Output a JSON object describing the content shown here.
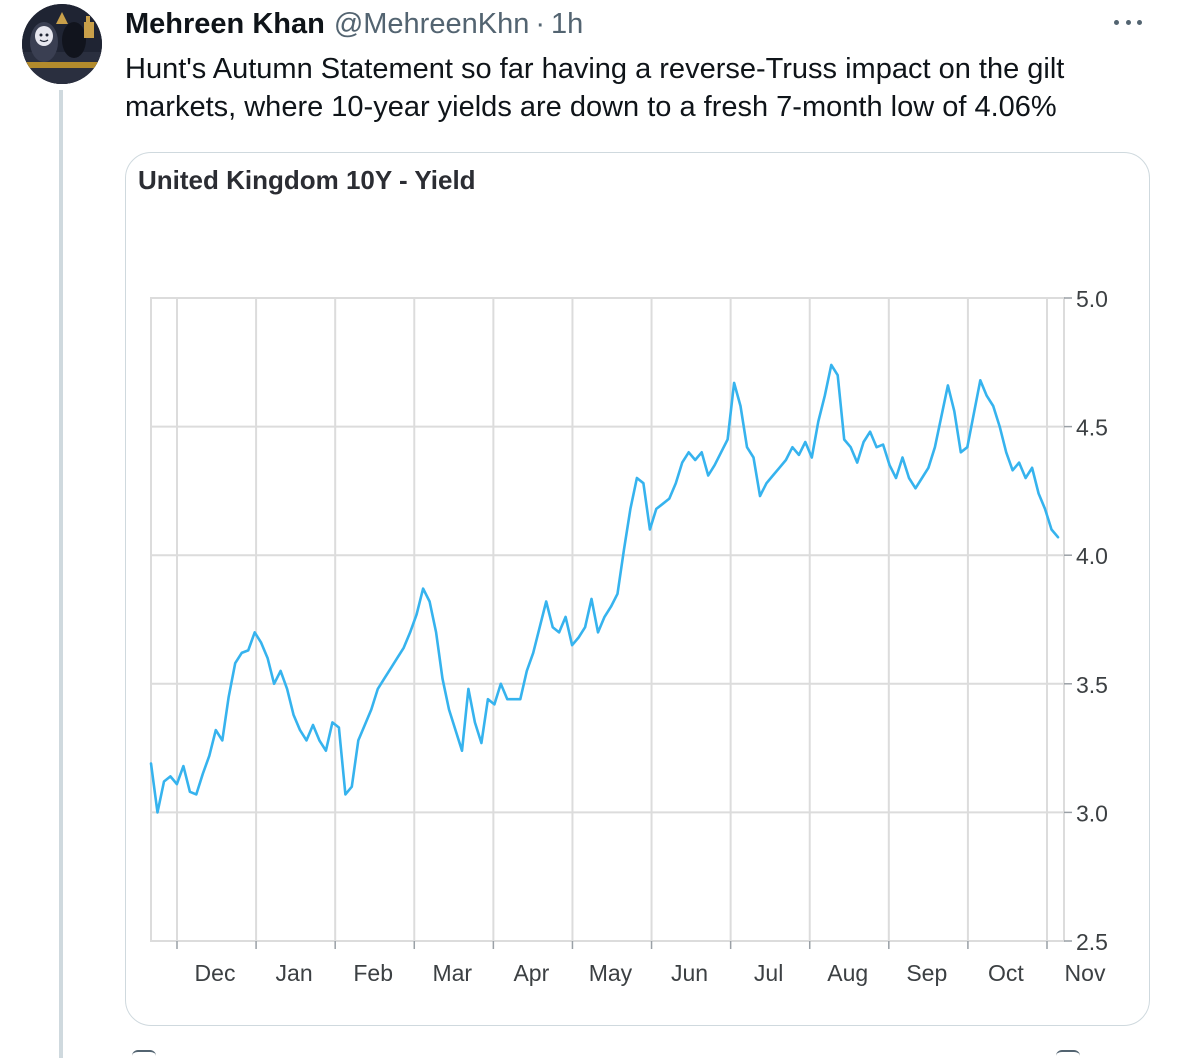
{
  "tweet": {
    "author_name": "Mehreen Khan",
    "handle": "@MehreenKhn",
    "separator": "·",
    "time": "1h",
    "text": "Hunt's Autumn Statement so far having a reverse-Truss impact on the gilt\nmarkets, where 10-year yields are down to a fresh 7-month low of 4.06%"
  },
  "icons": {
    "more": "more-options-icon",
    "avatar": "avatar"
  },
  "colors": {
    "line": "#36b3ee",
    "grid": "#dcdcdc",
    "text_secondary": "#536471",
    "card_border": "#cfd9de"
  },
  "chart_data": {
    "type": "line",
    "title": "United Kingdom 10Y - Yield",
    "xlabel": "",
    "ylabel": "",
    "ylim": [
      2.5,
      5.0
    ],
    "y_ticks": [
      "5.0",
      "4.5",
      "4.0",
      "3.5",
      "3.0",
      "2.5"
    ],
    "x_ticks": [
      "Dec",
      "Jan",
      "Feb",
      "Mar",
      "Apr",
      "May",
      "Jun",
      "Jul",
      "Aug",
      "Sep",
      "Oct",
      "Nov"
    ],
    "grid": true,
    "series": [
      {
        "values": [
          3.19,
          3.0,
          3.12,
          3.14,
          3.11,
          3.18,
          3.08,
          3.07,
          3.15,
          3.22,
          3.32,
          3.28,
          3.45,
          3.58,
          3.62,
          3.63,
          3.7,
          3.66,
          3.6,
          3.5,
          3.55,
          3.48,
          3.38,
          3.32,
          3.28,
          3.34,
          3.28,
          3.24,
          3.35,
          3.33,
          3.07,
          3.1,
          3.28,
          3.34,
          3.4,
          3.48,
          3.52,
          3.56,
          3.6,
          3.64,
          3.7,
          3.77,
          3.87,
          3.82,
          3.7,
          3.52,
          3.4,
          3.32,
          3.24,
          3.48,
          3.35,
          3.27,
          3.44,
          3.42,
          3.5,
          3.44,
          3.44,
          3.44,
          3.55,
          3.62,
          3.72,
          3.82,
          3.72,
          3.7,
          3.76,
          3.65,
          3.68,
          3.72,
          3.83,
          3.7,
          3.76,
          3.8,
          3.85,
          4.02,
          4.18,
          4.3,
          4.28,
          4.1,
          4.18,
          4.2,
          4.22,
          4.28,
          4.36,
          4.4,
          4.37,
          4.4,
          4.31,
          4.35,
          4.4,
          4.45,
          4.67,
          4.58,
          4.42,
          4.38,
          4.23,
          4.28,
          4.31,
          4.34,
          4.37,
          4.42,
          4.39,
          4.44,
          4.38,
          4.52,
          4.62,
          4.74,
          4.7,
          4.45,
          4.42,
          4.36,
          4.44,
          4.48,
          4.42,
          4.43,
          4.35,
          4.3,
          4.38,
          4.3,
          4.26,
          4.3,
          4.34,
          4.42,
          4.54,
          4.66,
          4.56,
          4.4,
          4.42,
          4.55,
          4.68,
          4.62,
          4.58,
          4.5,
          4.4,
          4.33,
          4.36,
          4.3,
          4.34,
          4.24,
          4.18,
          4.1,
          4.07
        ]
      }
    ]
  }
}
